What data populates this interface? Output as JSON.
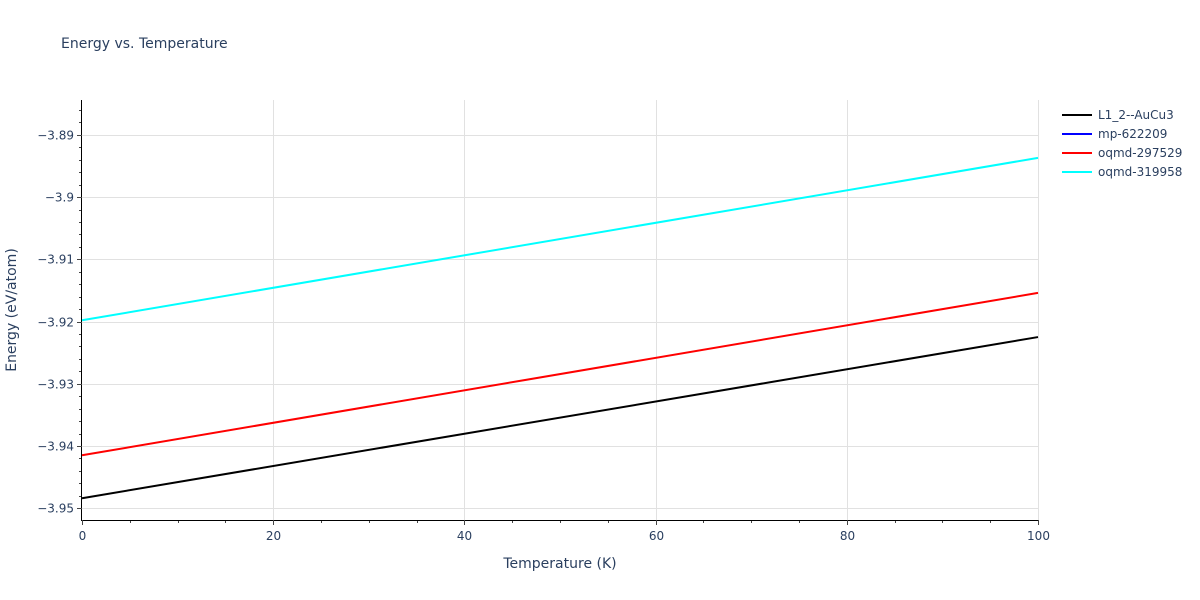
{
  "chart_data": {
    "type": "line",
    "title": "Energy vs. Temperature",
    "xlabel": "Temperature (K)",
    "ylabel": "Energy (eV/atom)",
    "xlim": [
      0,
      100
    ],
    "ylim": [
      -3.9519,
      -3.8844
    ],
    "x_ticks": [
      0,
      20,
      40,
      60,
      80,
      100
    ],
    "x_tick_labels": [
      "0",
      "20",
      "40",
      "60",
      "80",
      "100"
    ],
    "y_ticks": [
      -3.95,
      -3.94,
      -3.93,
      -3.92,
      -3.91,
      -3.9,
      -3.89
    ],
    "y_tick_labels": [
      "−3.95",
      "−3.94",
      "−3.93",
      "−3.92",
      "−3.91",
      "−3.9",
      "−3.89"
    ],
    "grid": true,
    "legend_position": "right",
    "x": [
      0,
      100
    ],
    "series": [
      {
        "name": "L1_2--AuCu3",
        "color": "#000000",
        "values": [
          -3.9484,
          -3.9225
        ]
      },
      {
        "name": "mp-622209",
        "color": "#0000ff",
        "values": []
      },
      {
        "name": "oqmd-297529",
        "color": "#ff0000",
        "values": [
          -3.9415,
          -3.9154
        ]
      },
      {
        "name": "oqmd-319958",
        "color": "#00ffff",
        "values": [
          -3.9198,
          -3.8937
        ]
      }
    ]
  },
  "legend": {
    "items": [
      {
        "label": "L1_2--AuCu3",
        "color": "#000000"
      },
      {
        "label": "mp-622209",
        "color": "#0000ff"
      },
      {
        "label": "oqmd-297529",
        "color": "#ff0000"
      },
      {
        "label": "oqmd-319958",
        "color": "#00ffff"
      }
    ]
  }
}
